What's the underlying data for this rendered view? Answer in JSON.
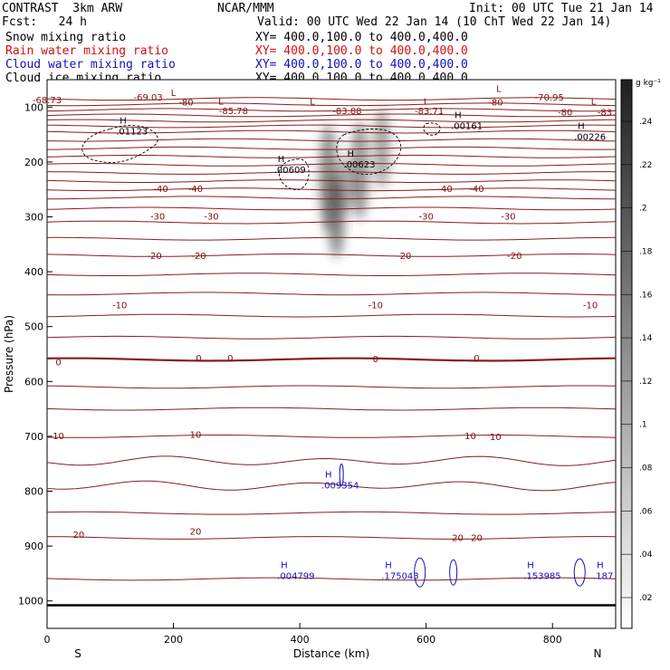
{
  "header": {
    "title": "CONTRAST  3km ARW",
    "center": "NCAR/MMM",
    "init": "Init: 00 UTC Tue 21 Jan 14",
    "fcst": "Fcst:   24 h",
    "valid": "Valid: 00 UTC Wed 22 Jan 14 (10 ChT Wed 22 Jan 14)"
  },
  "fields": [
    {
      "name": "Snow mixing ratio",
      "xy": "XY= 400.0,100.0 to 400.0,400.0",
      "color": "#000000"
    },
    {
      "name": "Rain water mixing ratio",
      "xy": "XY= 400.0,100.0 to 400.0,400.0",
      "color": "#d01010"
    },
    {
      "name": "Cloud water mixing ratio",
      "xy": "XY= 400.0,100.0 to 400.0,400.0",
      "color": "#1010c0"
    },
    {
      "name": "Cloud ice mixing ratio",
      "xy": "XY= 400.0,100.0 to 400.0,400.0",
      "color": "#000000"
    }
  ],
  "chart_data": {
    "type": "contour-cross-section",
    "xlabel": "Distance (km)",
    "ylabel": "Pressure (hPa)",
    "xlim": [
      0,
      900
    ],
    "ylim": [
      1050,
      50
    ],
    "xticks": [
      0,
      200,
      400,
      600,
      800
    ],
    "yticks": [
      100,
      200,
      300,
      400,
      500,
      600,
      700,
      800,
      900,
      1000
    ],
    "x_end_labels": {
      "left": "S",
      "right": "N"
    },
    "colorbar": {
      "unit": "g kg⁻¹",
      "ticks": [
        ".24",
        ".22",
        ".2",
        ".18",
        ".16",
        ".14",
        ".12",
        ".1",
        ".08",
        ".06",
        ".04",
        ".02"
      ],
      "range": [
        0,
        0.26
      ]
    },
    "ground_pressure": 1008,
    "temperature_contour_labels": [
      {
        "x": 0,
        "p": 88,
        "label": "-68.73"
      },
      {
        "x": 160,
        "p": 83,
        "label": "-69.03"
      },
      {
        "x": 220,
        "p": 92,
        "label": "-80"
      },
      {
        "x": 295,
        "p": 108,
        "label": "-85.78"
      },
      {
        "x": 475,
        "p": 108,
        "label": "-83.88"
      },
      {
        "x": 605,
        "p": 108,
        "label": "-83.71"
      },
      {
        "x": 710,
        "p": 92,
        "label": "-80"
      },
      {
        "x": 795,
        "p": 83,
        "label": "-70.95"
      },
      {
        "x": 820,
        "p": 110,
        "label": "-80"
      },
      {
        "x": 885,
        "p": 110,
        "label": "-83."
      },
      {
        "x": 180,
        "p": 250,
        "label": "-40"
      },
      {
        "x": 235,
        "p": 250,
        "label": "-40"
      },
      {
        "x": 630,
        "p": 250,
        "label": "-40"
      },
      {
        "x": 680,
        "p": 250,
        "label": "-40"
      },
      {
        "x": 175,
        "p": 300,
        "label": "-30"
      },
      {
        "x": 260,
        "p": 300,
        "label": "-30"
      },
      {
        "x": 600,
        "p": 300,
        "label": "-30"
      },
      {
        "x": 730,
        "p": 300,
        "label": "-30"
      },
      {
        "x": 170,
        "p": 372,
        "label": "-20"
      },
      {
        "x": 240,
        "p": 372,
        "label": "-20"
      },
      {
        "x": 565,
        "p": 372,
        "label": "-20"
      },
      {
        "x": 740,
        "p": 372,
        "label": "-20"
      },
      {
        "x": 115,
        "p": 462,
        "label": "-10"
      },
      {
        "x": 520,
        "p": 462,
        "label": "-10"
      },
      {
        "x": 860,
        "p": 462,
        "label": "-10"
      },
      {
        "x": 18,
        "p": 566,
        "label": "0"
      },
      {
        "x": 240,
        "p": 558,
        "label": "0"
      },
      {
        "x": 290,
        "p": 558,
        "label": "0"
      },
      {
        "x": 520,
        "p": 560,
        "label": "0"
      },
      {
        "x": 680,
        "p": 558,
        "label": "0"
      },
      {
        "x": 18,
        "p": 700,
        "label": "10"
      },
      {
        "x": 235,
        "p": 698,
        "label": "10"
      },
      {
        "x": 670,
        "p": 700,
        "label": "10"
      },
      {
        "x": 710,
        "p": 702,
        "label": "10"
      },
      {
        "x": 50,
        "p": 880,
        "label": "20"
      },
      {
        "x": 235,
        "p": 874,
        "label": "20"
      },
      {
        "x": 650,
        "p": 886,
        "label": "20"
      },
      {
        "x": 680,
        "p": 886,
        "label": "20"
      }
    ],
    "extrema_labels": [
      {
        "x": 115,
        "p": 140,
        "mark": "H",
        "value": ".01123",
        "color": "#000000"
      },
      {
        "x": 365,
        "p": 210,
        "mark": "H",
        "value": ".00609",
        "color": "#000000"
      },
      {
        "x": 475,
        "p": 200,
        "mark": "H",
        "value": ".00623",
        "color": "#000000"
      },
      {
        "x": 645,
        "p": 130,
        "mark": "H",
        "value": ".00161",
        "color": "#000000"
      },
      {
        "x": 840,
        "p": 150,
        "mark": "H",
        "value": ".00226",
        "color": "#000000"
      },
      {
        "x": 440,
        "p": 785,
        "mark": "H",
        "value": ".009354",
        "color": "#1010c0"
      },
      {
        "x": 370,
        "p": 950,
        "mark": "H",
        "value": ".004799",
        "color": "#1010c0"
      },
      {
        "x": 535,
        "p": 950,
        "mark": "H",
        "value": ".175043",
        "color": "#1010c0"
      },
      {
        "x": 760,
        "p": 950,
        "mark": "H",
        "value": ".153985",
        "color": "#1010c0"
      },
      {
        "x": 870,
        "p": 950,
        "mark": "H",
        "value": ".187",
        "color": "#1010c0"
      }
    ],
    "low_marks": [
      {
        "x": 200,
        "p": 80,
        "mark": "L"
      },
      {
        "x": 275,
        "p": 95,
        "mark": "L"
      },
      {
        "x": 420,
        "p": 95,
        "mark": "L"
      },
      {
        "x": 600,
        "p": 95,
        "mark": "L"
      },
      {
        "x": 715,
        "p": 72,
        "mark": "L"
      },
      {
        "x": 865,
        "p": 95,
        "mark": "L"
      }
    ]
  }
}
